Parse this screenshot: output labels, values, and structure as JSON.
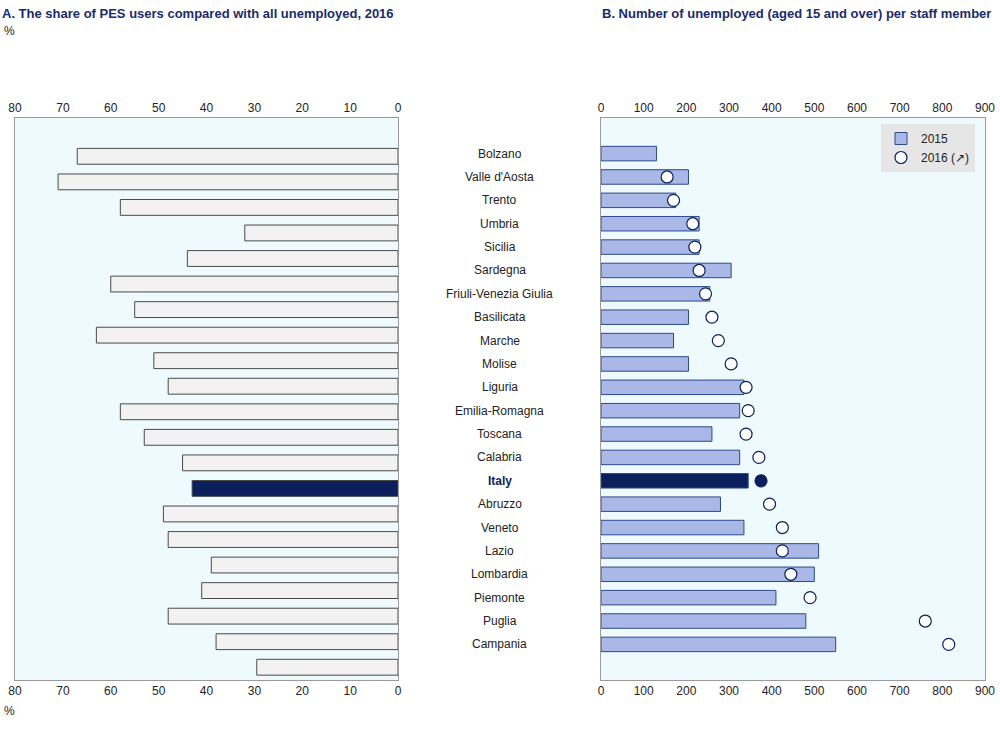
{
  "chart_data": [
    {
      "type": "bar",
      "orientation": "horizontal",
      "title": "A. The share of PES users compared with all unemployed, 2016",
      "xlabel": "%",
      "categories": [
        "Bolzano",
        "Valle d'Aosta",
        "Trento",
        "Umbria",
        "Sicilia",
        "Sardegna",
        "Friuli-Venezia Giulia",
        "Basilicata",
        "Marche",
        "Molise",
        "Liguria",
        "Emilia-Romagna",
        "Toscana",
        "Calabria",
        "Italy",
        "Abruzzo",
        "Veneto",
        "Lazio",
        "Lombardia",
        "Piemonte",
        "Puglia",
        "Campania"
      ],
      "values": [
        null,
        67,
        71,
        58,
        32,
        44,
        60,
        55,
        63,
        51,
        48,
        58,
        53,
        45,
        43,
        49,
        48,
        39,
        41,
        48,
        38,
        29.5
      ],
      "colors": [
        "#f2f2f2",
        "#f2f2f2",
        "#f2f2f2",
        "#f2f2f2",
        "#f2f2f2",
        "#f2f2f2",
        "#f2f2f2",
        "#f2f2f2",
        "#f2f2f2",
        "#f2f2f2",
        "#f2f2f2",
        "#f2f2f2",
        "#f2f2f2",
        "#f2f2f2",
        "#0a1f5c",
        "#f2f2f2",
        "#f2f2f2",
        "#f2f2f2",
        "#f2f2f2",
        "#f2f2f2",
        "#f2f2f2",
        "#f2f2f2"
      ],
      "xlim": [
        80,
        0
      ],
      "xticks": [
        80,
        70,
        60,
        50,
        40,
        30,
        20,
        10,
        0
      ],
      "grid": false
    },
    {
      "type": "bar",
      "orientation": "horizontal",
      "title": "B. Number of unemployed (aged 15 and over) per staff member",
      "categories": [
        "Bolzano",
        "Valle d'Aosta",
        "Trento",
        "Umbria",
        "Sicilia",
        "Sardegna",
        "Friuli-Venezia Giulia",
        "Basilicata",
        "Marche",
        "Molise",
        "Liguria",
        "Emilia-Romagna",
        "Toscana",
        "Calabria",
        "Italy",
        "Abruzzo",
        "Veneto",
        "Lazio",
        "Lombardia",
        "Piemonte",
        "Puglia",
        "Campania"
      ],
      "series": [
        {
          "name": "2015",
          "type": "bar",
          "colors": [
            "#a9b8e6",
            "#a9b8e6",
            "#a9b8e6",
            "#a9b8e6",
            "#a9b8e6",
            "#a9b8e6",
            "#a9b8e6",
            "#a9b8e6",
            "#a9b8e6",
            "#a9b8e6",
            "#a9b8e6",
            "#a9b8e6",
            "#a9b8e6",
            "#a9b8e6",
            "#0a1f5c",
            "#a9b8e6",
            "#a9b8e6",
            "#a9b8e6",
            "#a9b8e6",
            "#a9b8e6",
            "#a9b8e6",
            "#a9b8e6"
          ],
          "values": [
            130,
            205,
            175,
            230,
            230,
            305,
            255,
            205,
            170,
            205,
            335,
            325,
            260,
            325,
            345,
            280,
            335,
            510,
            500,
            410,
            480,
            550
          ]
        },
        {
          "name": "2016 (↗)",
          "type": "scatter",
          "marker": "circle",
          "colors": [
            "#ffffff",
            "#ffffff",
            "#ffffff",
            "#ffffff",
            "#ffffff",
            "#ffffff",
            "#ffffff",
            "#ffffff",
            "#ffffff",
            "#ffffff",
            "#ffffff",
            "#ffffff",
            "#ffffff",
            "#ffffff",
            "#0a1f5c",
            "#ffffff",
            "#ffffff",
            "#ffffff",
            "#ffffff",
            "#ffffff",
            "#ffffff",
            "#ffffff"
          ],
          "values": [
            null,
            155,
            170,
            215,
            220,
            230,
            245,
            260,
            275,
            305,
            340,
            345,
            340,
            370,
            375,
            395,
            425,
            425,
            445,
            490,
            760,
            815
          ]
        }
      ],
      "xlim": [
        0,
        900
      ],
      "xticks": [
        0,
        100,
        200,
        300,
        400,
        500,
        600,
        700,
        800,
        900
      ],
      "legend": "top right",
      "grid": false
    }
  ]
}
